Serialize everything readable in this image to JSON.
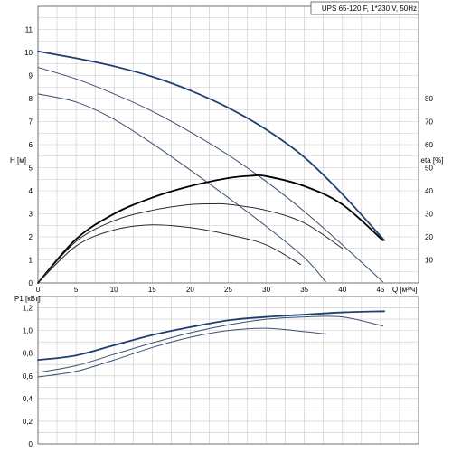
{
  "chart_data": [
    {
      "type": "line",
      "title": "UPS 65-120 F, 1*230 V, 50Hz",
      "xlabel": "Q [м³/ч]",
      "ylabel": "H [м]",
      "y2label": "eta [%]",
      "xlim": [
        0,
        50
      ],
      "ylim": [
        0,
        12
      ],
      "y2lim": [
        0,
        120
      ],
      "xticks": [
        0,
        5,
        10,
        15,
        20,
        25,
        30,
        35,
        40,
        45
      ],
      "yticks": [
        0,
        1,
        2,
        3,
        4,
        5,
        6,
        7,
        8,
        9,
        10,
        11
      ],
      "y2ticks": [
        10,
        20,
        30,
        40,
        50,
        60,
        70,
        80
      ],
      "grid": true,
      "series": [
        {
          "color": "#1f3f6f",
          "axis": "H",
          "x": [
            0,
            5,
            10,
            15,
            20,
            25,
            30,
            35,
            40,
            45.5
          ],
          "y": [
            10.05,
            9.75,
            9.4,
            8.95,
            8.35,
            7.6,
            6.65,
            5.45,
            3.85,
            1.85
          ]
        },
        {
          "color": "#3a4e72",
          "axis": "H",
          "x": [
            0,
            5,
            10,
            15,
            20,
            25,
            30,
            35,
            40,
            45.3
          ],
          "y": [
            9.35,
            8.85,
            8.2,
            7.45,
            6.55,
            5.55,
            4.4,
            3.1,
            1.65,
            0.05
          ]
        },
        {
          "color": "#3a4e72",
          "axis": "H",
          "x": [
            0,
            5,
            10,
            15,
            20,
            25,
            30,
            35,
            37.8
          ],
          "y": [
            8.2,
            7.85,
            7.1,
            6.05,
            4.9,
            3.7,
            2.45,
            1.1,
            0.05
          ]
        },
        {
          "color": "#000000",
          "axis": "eta",
          "x": [
            0,
            5,
            10,
            15,
            20,
            25,
            28,
            30,
            35,
            40,
            45.3
          ],
          "y": [
            0,
            19,
            30,
            37,
            42,
            45.5,
            46.5,
            46.3,
            42,
            34,
            18.5
          ]
        },
        {
          "color": "#2b2b2b",
          "axis": "eta",
          "x": [
            0,
            5,
            10,
            15,
            20,
            23,
            25,
            30,
            35,
            40
          ],
          "y": [
            0,
            18,
            27,
            31.5,
            34,
            34.3,
            34.1,
            31.5,
            26,
            15
          ]
        },
        {
          "color": "#2b2b2b",
          "axis": "eta",
          "x": [
            0,
            5,
            10,
            15,
            20,
            25,
            30,
            34.5
          ],
          "y": [
            0,
            16,
            23,
            25.2,
            24,
            21,
            16.5,
            8
          ]
        }
      ]
    },
    {
      "type": "line",
      "ylabel": "P1 [кВт]",
      "xlim": [
        0,
        50
      ],
      "ylim": [
        0,
        1.3
      ],
      "yticks": [
        0,
        0.2,
        0.4,
        0.6,
        0.8,
        1.0,
        1.2
      ],
      "ytick_labels": [
        "0",
        "0,2",
        "0,4",
        "0,6",
        "0,8",
        "1,0",
        "1,2"
      ],
      "grid": true,
      "series": [
        {
          "color": "#1f3f6f",
          "x": [
            0,
            5,
            10,
            15,
            20,
            25,
            30,
            35,
            40,
            45.5
          ],
          "y": [
            0.74,
            0.78,
            0.87,
            0.96,
            1.03,
            1.09,
            1.12,
            1.14,
            1.16,
            1.17
          ]
        },
        {
          "color": "#3a4e72",
          "x": [
            0,
            5,
            10,
            15,
            20,
            25,
            30,
            35,
            40,
            45.3
          ],
          "y": [
            0.63,
            0.69,
            0.79,
            0.89,
            0.98,
            1.05,
            1.1,
            1.12,
            1.12,
            1.04
          ]
        },
        {
          "color": "#3a4e72",
          "x": [
            0,
            5,
            10,
            15,
            20,
            25,
            30,
            35,
            37.8
          ],
          "y": [
            0.59,
            0.64,
            0.74,
            0.85,
            0.94,
            1.0,
            1.02,
            0.99,
            0.97
          ]
        }
      ]
    }
  ]
}
